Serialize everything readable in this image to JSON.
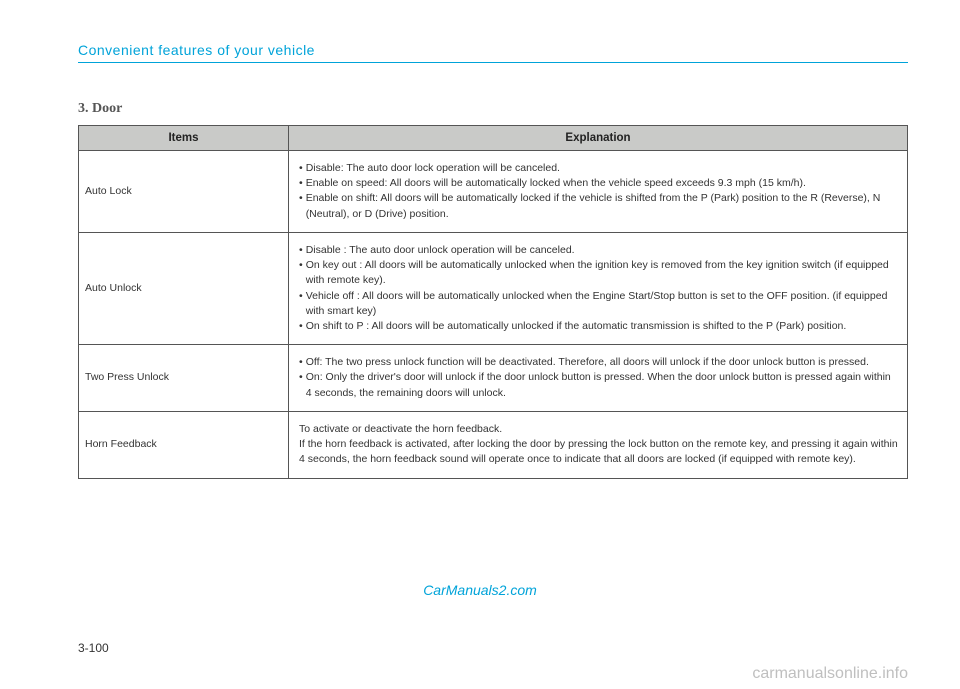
{
  "section_header": "Convenient features of your vehicle",
  "subsection_title": "3. Door",
  "table": {
    "headers": {
      "items": "Items",
      "explanation": "Explanation"
    },
    "rows": [
      {
        "item": "Auto Lock",
        "bullets": [
          "Disable: The auto door lock operation will be canceled.",
          "Enable on speed: All doors will be automatically locked when the vehicle speed exceeds 9.3 mph (15 km/h).",
          "Enable on shift: All doors will be automatically locked if the vehicle is shifted from the P (Park) position to the R (Reverse), N (Neutral), or D (Drive) position."
        ],
        "plain": null
      },
      {
        "item": "Auto Unlock",
        "bullets": [
          "Disable : The auto door unlock operation will be canceled.",
          "On key out : All doors will be automatically unlocked when the ignition key is removed from the key ignition switch (if equipped with remote key).",
          "Vehicle off : All doors will be automatically unlocked when the Engine Start/Stop button is set to the OFF position. (if equipped with smart key)",
          "On shift to P : All doors will be automatically unlocked if the automatic transmission is shifted to the P (Park) position."
        ],
        "plain": null
      },
      {
        "item": "Two Press Unlock",
        "bullets": [
          "Off: The two press unlock function will be deactivated. Therefore, all doors will unlock if the door unlock button is pressed.",
          "On: Only the driver's door will unlock if the door unlock button is pressed. When the door unlock button is pressed again within 4 seconds, the remaining doors will unlock."
        ],
        "plain": null
      },
      {
        "item": "Horn Feedback",
        "bullets": null,
        "plain": "To activate or deactivate the horn feedback.\nIf the horn feedback is activated, after locking the door by pressing the lock button on the remote key, and pressing it again within 4 seconds, the horn feedback sound will operate once to indicate that all doors are locked (if equipped with remote key)."
      }
    ]
  },
  "watermark_center": "CarManuals2.com",
  "page_number": "3-100",
  "watermark_bottom": "carmanualsonline.info",
  "colors": {
    "accent": "#00a3d9",
    "header_bg": "#c9cac8",
    "border": "#555555",
    "text": "#333333",
    "watermark_gray": "#bfbfbf"
  }
}
